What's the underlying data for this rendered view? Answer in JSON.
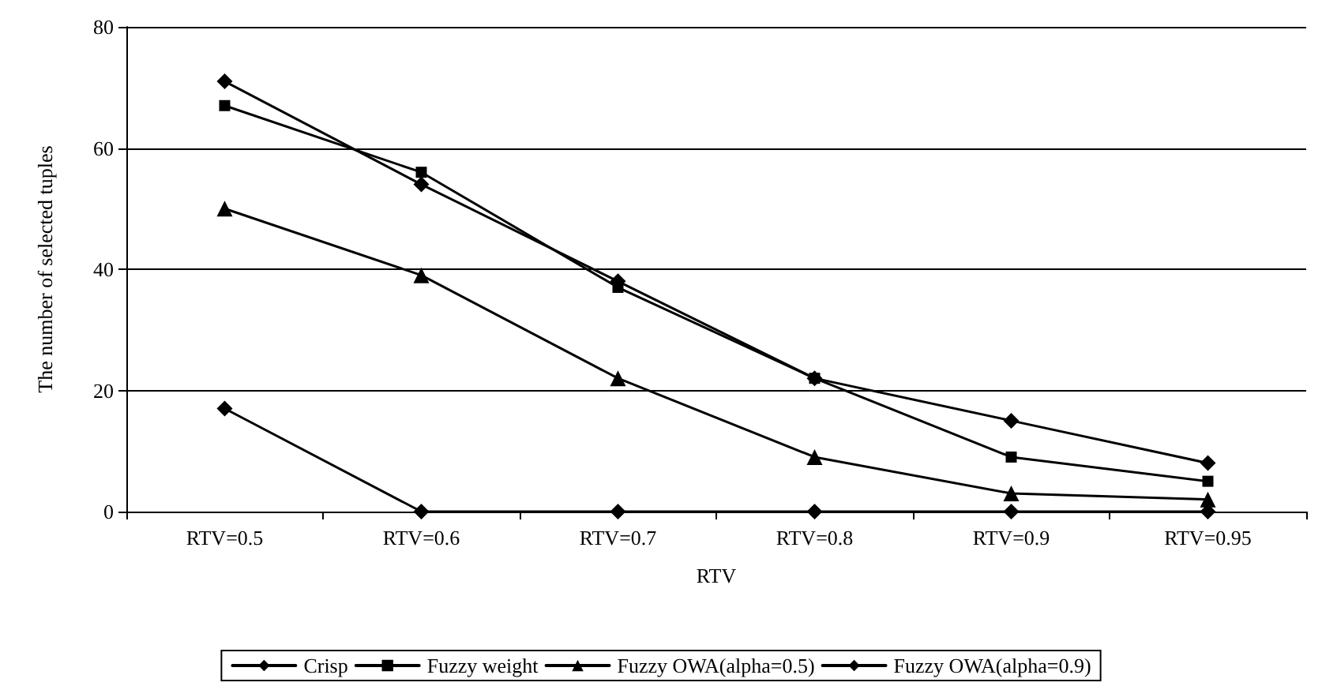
{
  "chart_data": {
    "type": "line",
    "xlabel": "RTV",
    "ylabel": "The number of selected tuples",
    "categories": [
      "RTV=0.5",
      "RTV=0.6",
      "RTV=0.7",
      "RTV=0.8",
      "RTV=0.9",
      "RTV=0.95"
    ],
    "series": [
      {
        "name": "Crisp",
        "color": "#000000",
        "marker": "diamond",
        "values": [
          17,
          0,
          0,
          0,
          0,
          0
        ]
      },
      {
        "name": "Fuzzy weight",
        "color": "#000000",
        "marker": "square",
        "values": [
          67,
          56,
          37,
          22,
          9,
          5
        ]
      },
      {
        "name": "Fuzzy OWA(alpha=0.5)",
        "color": "#000000",
        "marker": "triangle",
        "values": [
          50,
          39,
          22,
          9,
          3,
          2
        ]
      },
      {
        "name": "Fuzzy OWA(alpha=0.9)",
        "color": "#000000",
        "marker": "diamond",
        "values": [
          71,
          54,
          38,
          22,
          15,
          8
        ]
      }
    ],
    "ylim": [
      0,
      80
    ],
    "yticks": [
      0,
      20,
      40,
      60,
      80
    ],
    "grid": "y",
    "legend": "bottom",
    "line_style": "solid"
  }
}
